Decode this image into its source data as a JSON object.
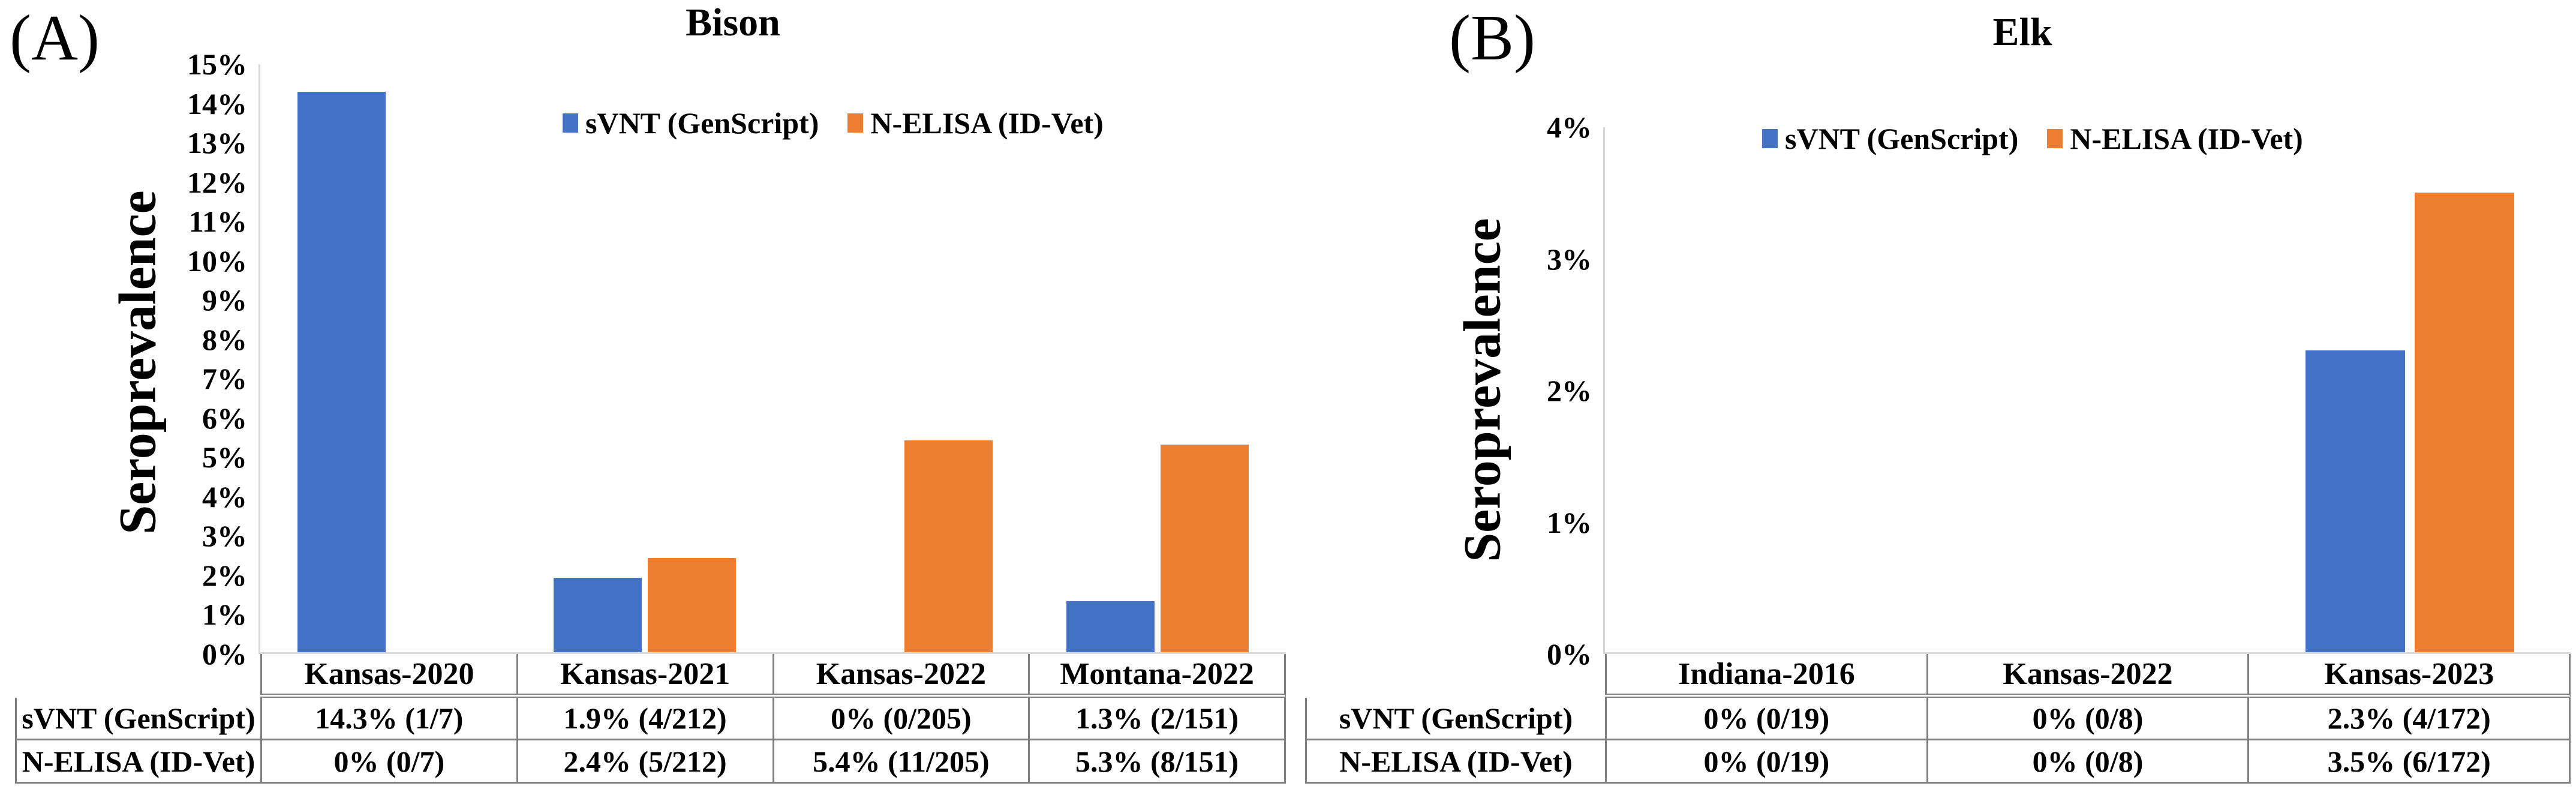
{
  "figure": {
    "background": "#ffffff",
    "accent_blue": "#4472C4",
    "accent_orange": "#ED7D31",
    "axis_line_color": "#d9d9d9",
    "table_border_color": "#7f7f7f"
  },
  "chart_data": [
    {
      "type": "bar",
      "panel_label": "(A)",
      "title": "Bison",
      "xlabel": "",
      "ylabel": "Seroprevalence",
      "ylim": [
        0,
        15
      ],
      "y_tick_labels": [
        "0%",
        "1%",
        "2%",
        "3%",
        "4%",
        "5%",
        "6%",
        "7%",
        "8%",
        "9%",
        "10%",
        "11%",
        "12%",
        "13%",
        "14%",
        "15%"
      ],
      "grid": false,
      "legend_position": "top-center",
      "data_table": true,
      "categories": [
        "Kansas-2020",
        "Kansas-2021",
        "Kansas-2022",
        "Montana-2022"
      ],
      "series": [
        {
          "name": "sVNT (GenScript)",
          "color": "#4472C4",
          "values": [
            14.3,
            1.9,
            0,
            1.3
          ],
          "table_labels": [
            "14.3% (1/7)",
            "1.9% (4/212)",
            "0% (0/205)",
            "1.3% (2/151)"
          ]
        },
        {
          "name": "N-ELISA (ID-Vet)",
          "color": "#ED7D31",
          "values": [
            0,
            2.4,
            5.4,
            5.3
          ],
          "table_labels": [
            "0% (0/7)",
            "2.4% (5/212)",
            "5.4% (11/205)",
            "5.3% (8/151)"
          ]
        }
      ]
    },
    {
      "type": "bar",
      "panel_label": "(B)",
      "title": "Elk",
      "xlabel": "",
      "ylabel": "Seroprevalence",
      "ylim": [
        0,
        4
      ],
      "y_tick_labels": [
        "0%",
        "1%",
        "2%",
        "3%",
        "4%"
      ],
      "grid": false,
      "legend_position": "top-center",
      "data_table": true,
      "categories": [
        "Indiana-2016",
        "Kansas-2022",
        "Kansas-2023"
      ],
      "series": [
        {
          "name": "sVNT (GenScript)",
          "color": "#4472C4",
          "values": [
            0,
            0,
            2.3
          ],
          "table_labels": [
            "0% (0/19)",
            "0% (0/8)",
            "2.3% (4/172)"
          ]
        },
        {
          "name": "N-ELISA (ID-Vet)",
          "color": "#ED7D31",
          "values": [
            0,
            0,
            3.5
          ],
          "table_labels": [
            "0% (0/19)",
            "0% (0/8)",
            "3.5% (6/172)"
          ]
        }
      ]
    }
  ]
}
